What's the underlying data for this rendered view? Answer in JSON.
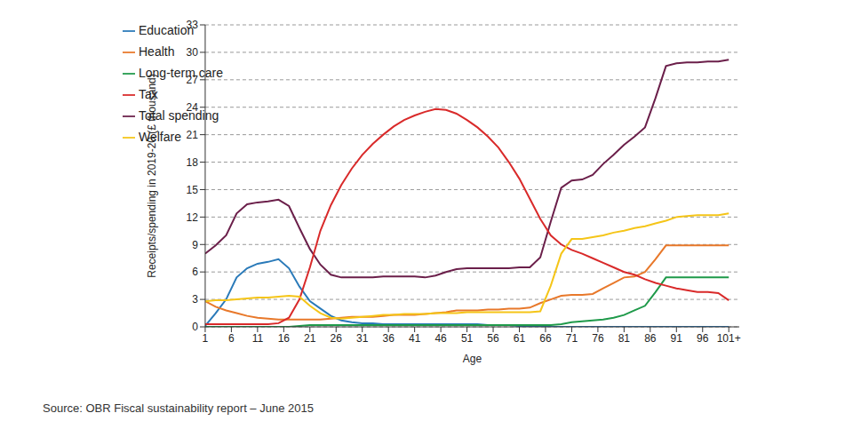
{
  "chart_data": {
    "type": "line",
    "x_label": "Age",
    "y_label": "Receipts/spending in 2019-20 (£ thousand)",
    "source": "Source: OBR Fiscal sustainability report – June 2015",
    "x": [
      1,
      3,
      5,
      7,
      9,
      11,
      13,
      15,
      17,
      19,
      21,
      23,
      25,
      27,
      29,
      31,
      33,
      35,
      37,
      39,
      41,
      43,
      45,
      47,
      49,
      51,
      53,
      55,
      57,
      59,
      61,
      63,
      65,
      67,
      69,
      71,
      73,
      75,
      77,
      79,
      81,
      83,
      85,
      87,
      89,
      91,
      93,
      95,
      97,
      99,
      101
    ],
    "xlim": [
      1,
      103
    ],
    "xticks": [
      1,
      6,
      11,
      16,
      21,
      26,
      31,
      36,
      41,
      46,
      51,
      56,
      61,
      66,
      71,
      76,
      81,
      86,
      91,
      96,
      {
        "value": 101,
        "label": "101+"
      }
    ],
    "ylim": [
      0,
      33
    ],
    "yticks": [
      0,
      3,
      6,
      9,
      12,
      15,
      18,
      21,
      24,
      27,
      30,
      33
    ],
    "grid": true,
    "legend": "upper left",
    "series": [
      {
        "name": "Total spending",
        "color": "#6b1f4a",
        "values": [
          8.0,
          8.9,
          10.0,
          12.4,
          13.4,
          13.6,
          13.7,
          13.9,
          13.2,
          10.8,
          8.5,
          6.8,
          5.7,
          5.4,
          5.4,
          5.4,
          5.4,
          5.5,
          5.5,
          5.5,
          5.5,
          5.4,
          5.6,
          6.0,
          6.3,
          6.4,
          6.4,
          6.4,
          6.4,
          6.4,
          6.5,
          6.5,
          7.6,
          11.5,
          15.2,
          16.0,
          16.1,
          16.6,
          17.8,
          18.8,
          19.9,
          20.8,
          21.8,
          25.0,
          28.5,
          28.8,
          28.9,
          28.9,
          29.0,
          29.0,
          29.2
        ]
      },
      {
        "name": "Education",
        "color": "#2a7ab9",
        "values": [
          0.1,
          1.5,
          3.0,
          5.4,
          6.4,
          6.9,
          7.1,
          7.4,
          6.4,
          4.4,
          2.8,
          2.0,
          1.2,
          0.7,
          0.5,
          0.4,
          0.4,
          0.3,
          0.3,
          0.3,
          0.3,
          0.3,
          0.3,
          0.3,
          0.3,
          0.3,
          0.3,
          0.2,
          0.2,
          0.2,
          0.1,
          0.1,
          0,
          0,
          0,
          0,
          0,
          0,
          0,
          0,
          0,
          0,
          0,
          0,
          0,
          0,
          0,
          0,
          0,
          0,
          0
        ]
      },
      {
        "name": "Health",
        "color": "#e8782a",
        "values": [
          2.8,
          2.2,
          1.8,
          1.5,
          1.2,
          1.0,
          0.9,
          0.8,
          0.8,
          0.8,
          0.8,
          0.8,
          0.9,
          1.0,
          1.1,
          1.1,
          1.1,
          1.2,
          1.3,
          1.3,
          1.3,
          1.4,
          1.5,
          1.6,
          1.8,
          1.8,
          1.8,
          1.9,
          1.9,
          2.0,
          2.0,
          2.1,
          2.6,
          3.0,
          3.4,
          3.5,
          3.5,
          3.6,
          4.2,
          4.8,
          5.4,
          5.5,
          6.0,
          7.4,
          8.9,
          8.9,
          8.9,
          8.9,
          8.9,
          8.9,
          8.9
        ]
      },
      {
        "name": "Long-term care",
        "color": "#1f9a4a",
        "values": [
          0,
          0,
          0,
          0,
          0,
          0,
          0,
          0,
          0,
          0.1,
          0.2,
          0.2,
          0.2,
          0.2,
          0.2,
          0.2,
          0.2,
          0.2,
          0.2,
          0.2,
          0.2,
          0.2,
          0.2,
          0.2,
          0.2,
          0.2,
          0.2,
          0.2,
          0.2,
          0.2,
          0.2,
          0.2,
          0.2,
          0.2,
          0.3,
          0.5,
          0.6,
          0.7,
          0.8,
          1.0,
          1.3,
          1.8,
          2.3,
          3.8,
          5.4,
          5.4,
          5.4,
          5.4,
          5.4,
          5.4,
          5.4
        ]
      },
      {
        "name": "Tax",
        "color": "#d92a2a",
        "values": [
          0.3,
          0.3,
          0.3,
          0.3,
          0.3,
          0.3,
          0.3,
          0.4,
          1.0,
          3.0,
          6.5,
          10.5,
          13.3,
          15.5,
          17.3,
          18.8,
          20.0,
          21.0,
          21.9,
          22.6,
          23.1,
          23.5,
          23.8,
          23.7,
          23.3,
          22.6,
          21.8,
          20.8,
          19.6,
          18.0,
          16.2,
          14.0,
          11.8,
          10.0,
          9.0,
          8.4,
          8.0,
          7.5,
          7.0,
          6.5,
          6.0,
          5.7,
          5.2,
          4.8,
          4.5,
          4.2,
          4.0,
          3.8,
          3.8,
          3.7,
          2.9
        ]
      },
      {
        "name": "Welfare",
        "color": "#f5c518",
        "values": [
          2.8,
          2.9,
          2.9,
          3.0,
          3.1,
          3.2,
          3.2,
          3.3,
          3.4,
          3.3,
          2.3,
          1.5,
          1.0,
          0.9,
          1.0,
          1.1,
          1.2,
          1.3,
          1.3,
          1.4,
          1.4,
          1.4,
          1.5,
          1.5,
          1.5,
          1.6,
          1.6,
          1.6,
          1.6,
          1.6,
          1.6,
          1.6,
          1.7,
          4.5,
          8.0,
          9.6,
          9.6,
          9.8,
          10.0,
          10.3,
          10.5,
          10.8,
          11.0,
          11.3,
          11.6,
          12.0,
          12.1,
          12.2,
          12.2,
          12.2,
          12.4
        ]
      }
    ]
  }
}
